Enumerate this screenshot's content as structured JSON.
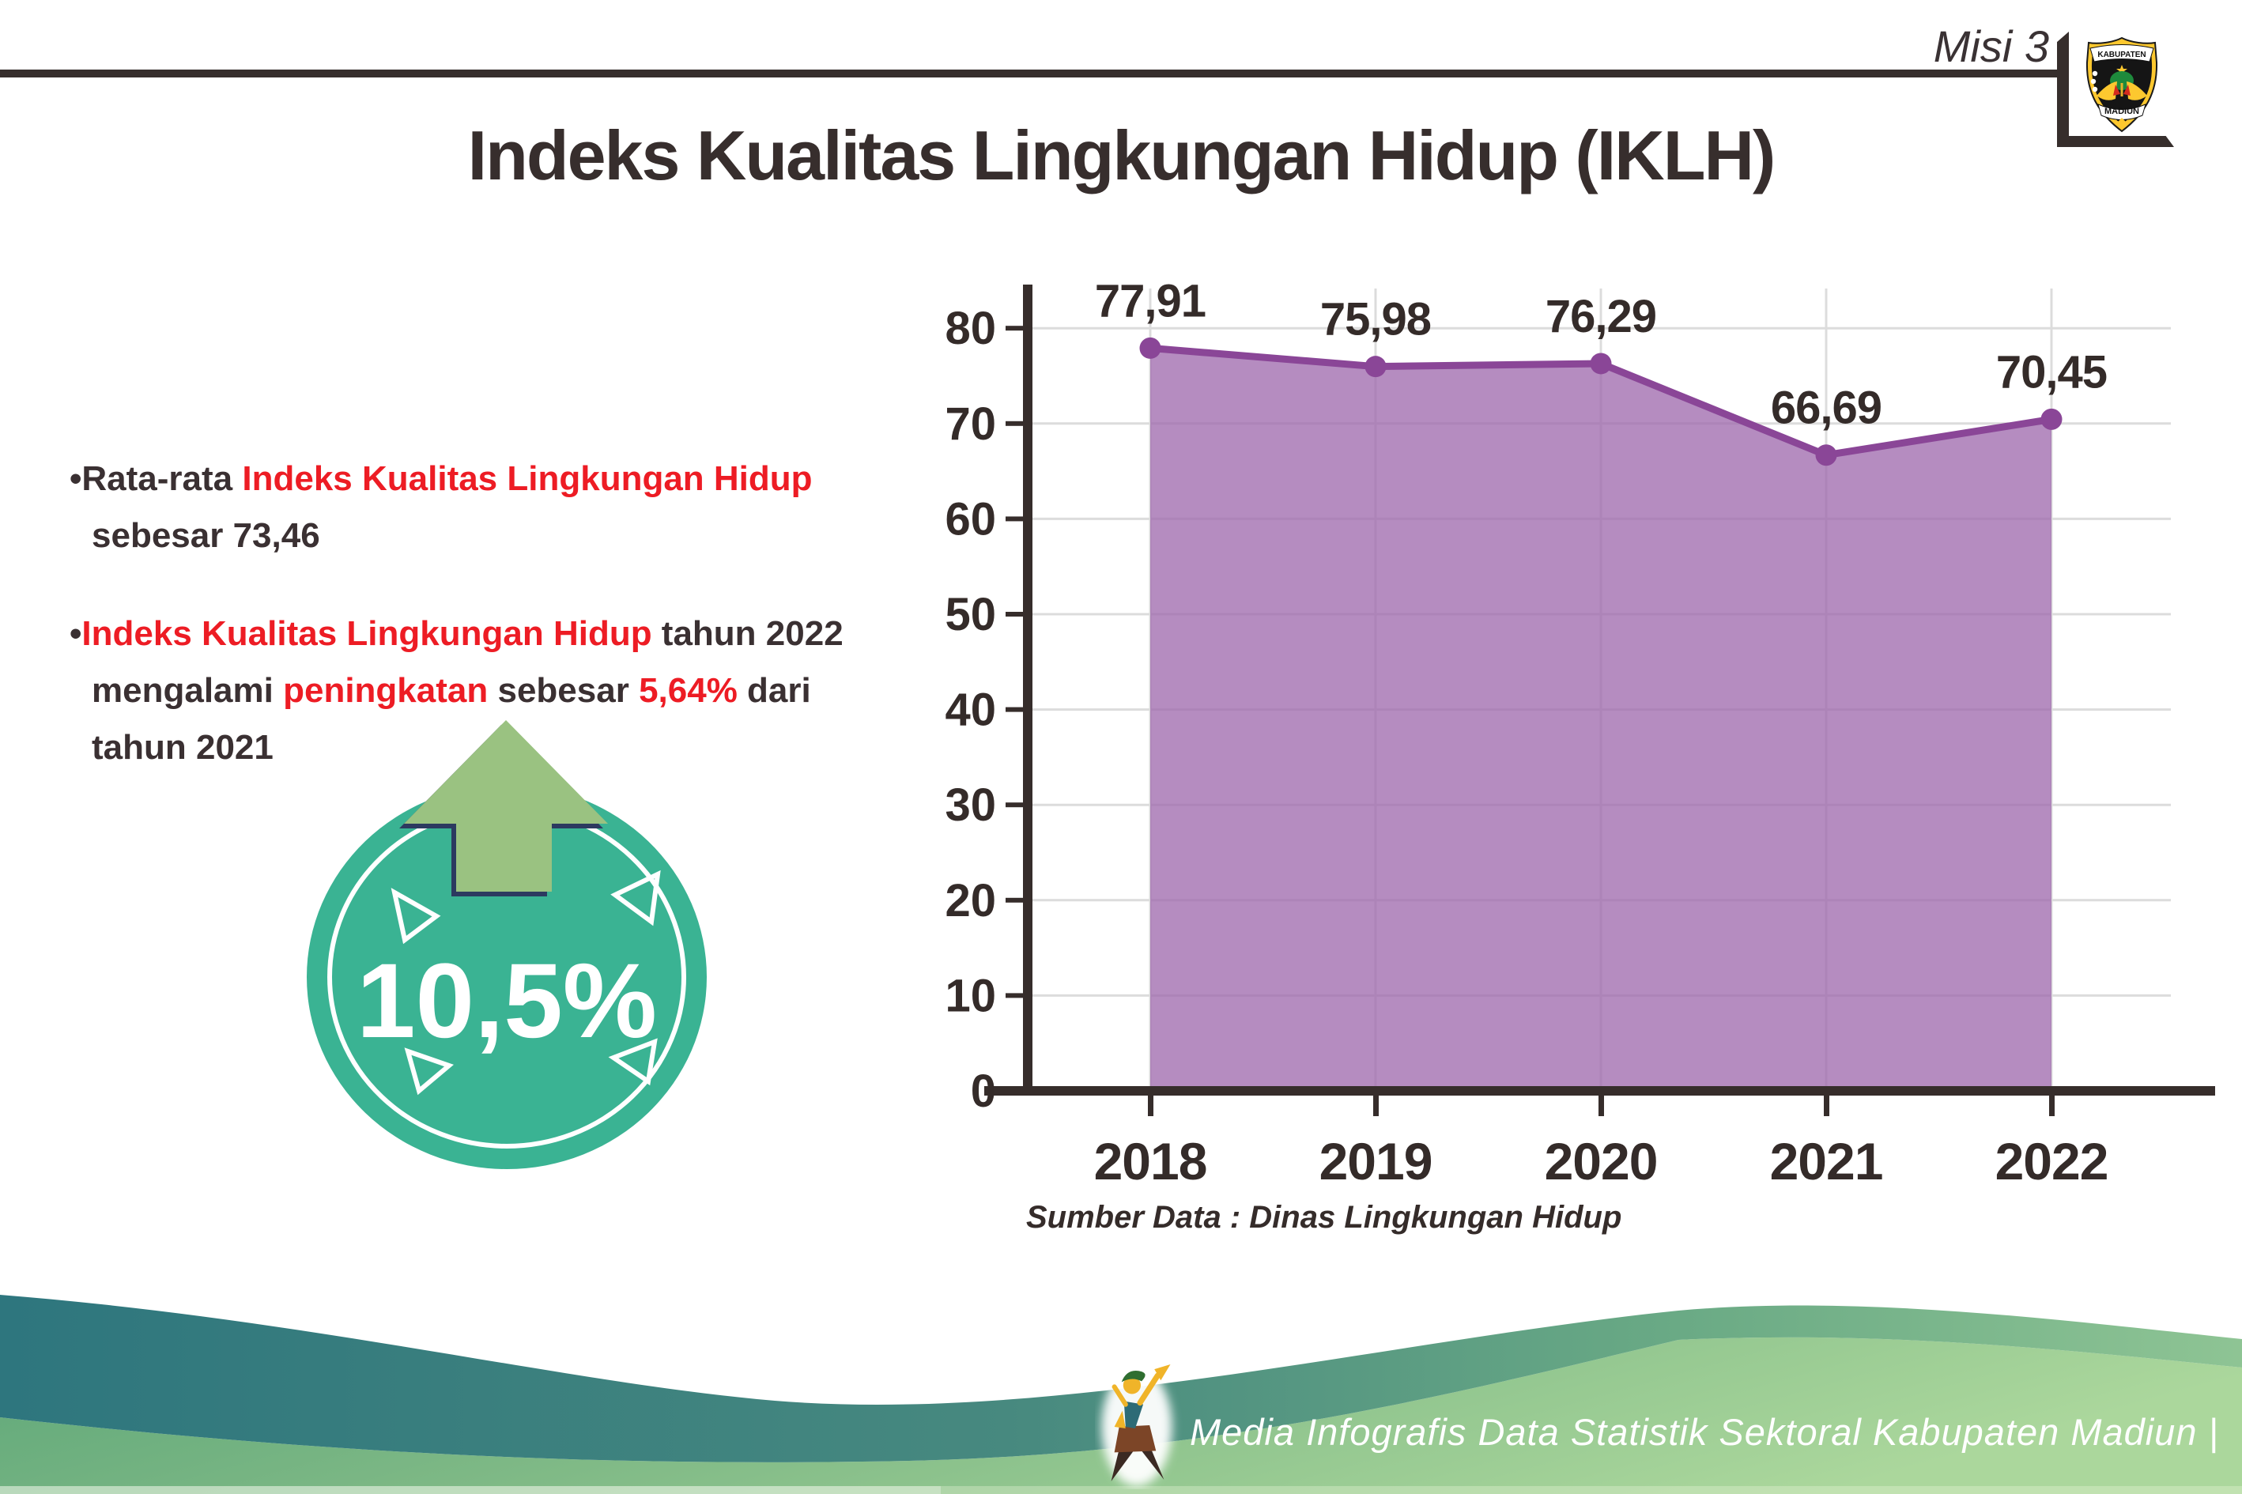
{
  "header": {
    "misi_label": "Misi 3",
    "logo": {
      "top_text": "KABUPATEN",
      "bottom_text": "MADIUN"
    }
  },
  "title": "Indeks Kualitas Lingkungan Hidup (IKLH)",
  "insights": {
    "bullet1": {
      "line1": [
        "•Rata-rata ",
        "Indeks Kualitas Lingkungan Hidup"
      ],
      "line2": [
        "sebesar 73,46"
      ]
    },
    "bullet2": {
      "line1": [
        "•",
        "Indeks Kualitas Lingkungan Hidup",
        " tahun 2022"
      ],
      "line2": [
        "mengalami ",
        "peningkatan",
        " sebesar ",
        "5,64%",
        " dari"
      ],
      "line3": [
        "tahun 2021"
      ]
    }
  },
  "highlight": {
    "value": "10,5%"
  },
  "chart_data": {
    "type": "area",
    "categories": [
      "2018",
      "2019",
      "2020",
      "2021",
      "2022"
    ],
    "values": [
      77.91,
      75.98,
      76.29,
      66.69,
      70.45
    ],
    "value_labels": [
      "77,91",
      "75,98",
      "76,29",
      "66,69",
      "70,45"
    ],
    "title": "",
    "xlabel": "",
    "ylabel": "",
    "ylim": [
      0,
      85
    ],
    "yticks": [
      0,
      10,
      20,
      30,
      40,
      50,
      60,
      70,
      80
    ],
    "grid": true,
    "legend": "none",
    "line_color": "#8a4697",
    "fill_color": "#a06cae",
    "fill_opacity": 0.78
  },
  "source_note": "Sumber Data : Dinas Lingkungan Hidup",
  "footer": {
    "caption": "Media Infografis Data Statistik Sektoral Kabupaten Madiun |"
  },
  "colors": {
    "text_dark": "#3a3032",
    "text_red": "#ed1c24",
    "frame": "#362e2c",
    "badge_teal": "#3ab393",
    "arrow_green": "#9ac281",
    "arrow_outline_navy": "#2c3a60",
    "wave_teal": "#2e767e",
    "wave_green": "#a9d79a",
    "axis": "#362d2b",
    "gridline": "#dcdcdc"
  }
}
